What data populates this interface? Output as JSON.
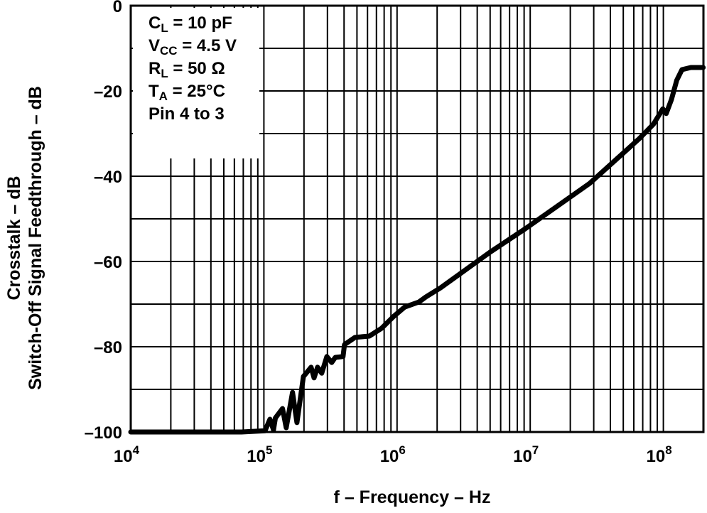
{
  "chart_data": {
    "type": "line",
    "xlabel": "f – Frequency – Hz",
    "ylabel_lines": [
      "Crosstalk – dB",
      "Switch-Off Signal Feedthrough – dB"
    ],
    "x_scale": "log",
    "xlim": [
      10000,
      200000000
    ],
    "ylim": [
      -100,
      0
    ],
    "grid": true,
    "x_ticks": [
      {
        "base": "10",
        "exp": "4"
      },
      {
        "base": "10",
        "exp": "5"
      },
      {
        "base": "10",
        "exp": "6"
      },
      {
        "base": "10",
        "exp": "7"
      },
      {
        "base": "10",
        "exp": "8"
      }
    ],
    "y_ticks": [
      "0",
      "–20",
      "–40",
      "–60",
      "–80",
      "–100"
    ],
    "y_tick_values": [
      0,
      -20,
      -40,
      -60,
      -80,
      -100
    ],
    "annotation": [
      {
        "main": "C",
        "sub": "L",
        "rest": " = 10 pF"
      },
      {
        "main": "V",
        "sub": "CC",
        "rest": " = 4.5 V"
      },
      {
        "main": "R",
        "sub": "L",
        "rest": " = 50 Ω"
      },
      {
        "main": "T",
        "sub": "A",
        "rest": " = 25°C"
      },
      {
        "main": "Pin 4 to 3",
        "sub": "",
        "rest": ""
      }
    ],
    "legend_placement": "top-left",
    "series": [
      {
        "color": "#000000",
        "x": [
          10000,
          67900,
          102000,
          111000,
          118000,
          122000,
          138000,
          147000,
          164000,
          177000,
          198000,
          226000,
          238000,
          253000,
          272000,
          297000,
          323000,
          344000,
          393000,
          403000,
          484000,
          619000,
          763000,
          950000,
          1140000,
          1460000,
          1650000,
          2120000,
          5000000,
          9200000,
          27900000,
          65900000,
          84200000,
          99000000,
          105000000,
          115000000,
          126000000,
          138000000,
          161000000,
          199000000
        ],
        "y": [
          -100,
          -100,
          -99.7,
          -97,
          -99.5,
          -96.7,
          -94.5,
          -99,
          -90.7,
          -97.8,
          -87,
          -84.8,
          -87.3,
          -84.8,
          -86.2,
          -82.3,
          -83.7,
          -82.5,
          -82.3,
          -79.5,
          -77.8,
          -77.5,
          -75.7,
          -72.8,
          -70.7,
          -69.5,
          -68.3,
          -66.2,
          -57.8,
          -52.3,
          -41.7,
          -31.2,
          -27.8,
          -24.2,
          -25.3,
          -22,
          -17.5,
          -15,
          -14.5,
          -14.5
        ]
      }
    ]
  }
}
